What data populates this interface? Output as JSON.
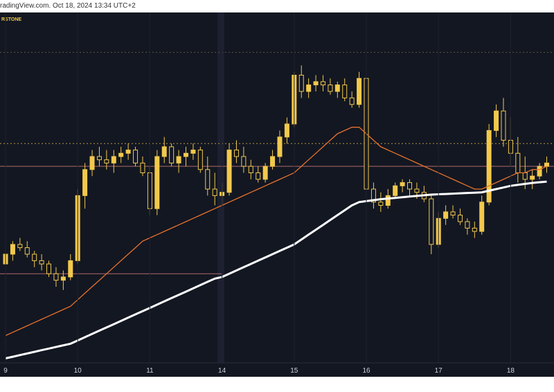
{
  "header": {
    "text": "radingView.com. Oct 18, 2024 13:34 UTC+2"
  },
  "chart_data": {
    "type": "candlestick",
    "watermark": "RSTONE",
    "x_tick_labels": [
      "9",
      "10",
      "11",
      "14",
      "15",
      "16",
      "17",
      "18"
    ],
    "x_tick_index": [
      0,
      10,
      20,
      30,
      40,
      50,
      60,
      70
    ],
    "ylim": [
      0,
      100
    ],
    "candles": [
      [
        27,
        32,
        25,
        30
      ],
      [
        30,
        34,
        28,
        33
      ],
      [
        33,
        35,
        31,
        32
      ],
      [
        32,
        34,
        29,
        30
      ],
      [
        30,
        31,
        26,
        28
      ],
      [
        28,
        30,
        25,
        27
      ],
      [
        27,
        28,
        23,
        24
      ],
      [
        24,
        26,
        20,
        22
      ],
      [
        22,
        25,
        19,
        23
      ],
      [
        23,
        30,
        22,
        28
      ],
      [
        28,
        50,
        27,
        48
      ],
      [
        48,
        58,
        44,
        56
      ],
      [
        56,
        62,
        54,
        60
      ],
      [
        60,
        63,
        57,
        59
      ],
      [
        59,
        62,
        56,
        58
      ],
      [
        58,
        62,
        55,
        60
      ],
      [
        60,
        63,
        58,
        61
      ],
      [
        61,
        64,
        59,
        62
      ],
      [
        62,
        63,
        57,
        58
      ],
      [
        58,
        60,
        54,
        55
      ],
      [
        55,
        57,
        42,
        44
      ],
      [
        44,
        62,
        42,
        60
      ],
      [
        60,
        66,
        58,
        63
      ],
      [
        63,
        64,
        57,
        58
      ],
      [
        58,
        62,
        55,
        60
      ],
      [
        60,
        63,
        57,
        61
      ],
      [
        61,
        64,
        59,
        62
      ],
      [
        62,
        63,
        55,
        56
      ],
      [
        56,
        60,
        48,
        50
      ],
      [
        50,
        55,
        45,
        48
      ],
      [
        48,
        52,
        45,
        49
      ],
      [
        49,
        64,
        48,
        62
      ],
      [
        62,
        65,
        58,
        60
      ],
      [
        60,
        63,
        55,
        57
      ],
      [
        57,
        59,
        53,
        55
      ],
      [
        55,
        57,
        52,
        53
      ],
      [
        53,
        58,
        52,
        57
      ],
      [
        57,
        62,
        56,
        60
      ],
      [
        60,
        68,
        58,
        66
      ],
      [
        66,
        72,
        64,
        70
      ],
      [
        70,
        86,
        69,
        85
      ],
      [
        85,
        88,
        78,
        80
      ],
      [
        80,
        84,
        78,
        82
      ],
      [
        82,
        85,
        80,
        83
      ],
      [
        83,
        85,
        80,
        82
      ],
      [
        82,
        84,
        79,
        80
      ],
      [
        80,
        83,
        78,
        82
      ],
      [
        82,
        84,
        77,
        78
      ],
      [
        78,
        80,
        75,
        76
      ],
      [
        76,
        86,
        75,
        84
      ],
      [
        84,
        85,
        48,
        50
      ],
      [
        50,
        52,
        44,
        46
      ],
      [
        46,
        49,
        43,
        45
      ],
      [
        45,
        50,
        44,
        48
      ],
      [
        48,
        52,
        47,
        51
      ],
      [
        51,
        53,
        49,
        52
      ],
      [
        52,
        53,
        48,
        50
      ],
      [
        50,
        52,
        47,
        49
      ],
      [
        49,
        51,
        46,
        47
      ],
      [
        47,
        48,
        30,
        33
      ],
      [
        33,
        43,
        32,
        41
      ],
      [
        41,
        45,
        39,
        43
      ],
      [
        43,
        45,
        41,
        42
      ],
      [
        42,
        44,
        39,
        40
      ],
      [
        40,
        41,
        36,
        38
      ],
      [
        38,
        40,
        35,
        37
      ],
      [
        37,
        48,
        36,
        46
      ],
      [
        46,
        70,
        45,
        68
      ],
      [
        68,
        76,
        66,
        74
      ],
      [
        74,
        78,
        63,
        65
      ],
      [
        65,
        72,
        57,
        61
      ],
      [
        61,
        66,
        52,
        55
      ],
      [
        55,
        60,
        50,
        53
      ],
      [
        53,
        56,
        50,
        54
      ],
      [
        54,
        58,
        53,
        57
      ],
      [
        57,
        60,
        55,
        58
      ]
    ],
    "series": [
      {
        "name": "",
        "color": "#e8722c",
        "values": [
          5,
          6,
          7,
          8,
          9,
          10,
          11,
          12,
          13,
          14,
          16,
          18,
          20,
          22,
          24,
          26,
          28,
          30,
          32,
          34,
          35,
          36,
          37,
          38,
          39,
          40,
          41,
          42,
          43,
          44,
          45,
          46,
          47,
          48,
          49,
          50,
          51,
          52,
          53,
          54,
          55,
          57,
          59,
          61,
          63,
          65,
          67,
          68,
          69,
          69,
          67,
          65,
          63,
          62,
          61,
          60,
          59,
          58,
          57,
          56,
          55,
          54,
          53,
          52,
          51,
          50,
          50,
          51,
          52,
          53,
          54,
          55,
          55,
          56,
          56,
          57
        ]
      },
      {
        "name": "",
        "color": "#ffffff",
        "values": [
          -2,
          -1.5,
          -1,
          -0.5,
          0,
          0.5,
          1,
          1.5,
          2,
          2.5,
          3.5,
          4.5,
          5.5,
          6.5,
          7.5,
          8.5,
          9.5,
          10.5,
          11.5,
          12.5,
          13.5,
          14.5,
          15.5,
          16.5,
          17.5,
          18.5,
          19.5,
          20.5,
          21.5,
          22.5,
          23,
          24,
          25,
          26,
          27,
          28,
          29,
          30,
          31,
          32,
          33,
          34.5,
          36,
          37.5,
          39,
          40.5,
          42,
          43.5,
          45,
          46,
          46.3,
          46.6,
          46.9,
          47.1,
          47.3,
          47.5,
          47.7,
          47.9,
          48.1,
          48.3,
          48.4,
          48.5,
          48.6,
          48.7,
          48.8,
          48.9,
          49,
          49.5,
          50,
          50.5,
          51,
          51.3,
          51.6,
          51.9,
          52.1,
          52.3
        ]
      }
    ],
    "levels": [
      {
        "value": 92,
        "color": "#5a5a3a",
        "style": "dotted"
      },
      {
        "value": 64,
        "color": "#b8973a",
        "style": "dotted"
      },
      {
        "value": 57,
        "color": "#b06a6a",
        "style": "solid"
      },
      {
        "value": 24,
        "color": "#b06a6a",
        "style": "solid",
        "end_index": 30
      }
    ],
    "colors": {
      "background": "#131722",
      "candle": "#f2c94c",
      "highlight": "#1c2030"
    }
  }
}
